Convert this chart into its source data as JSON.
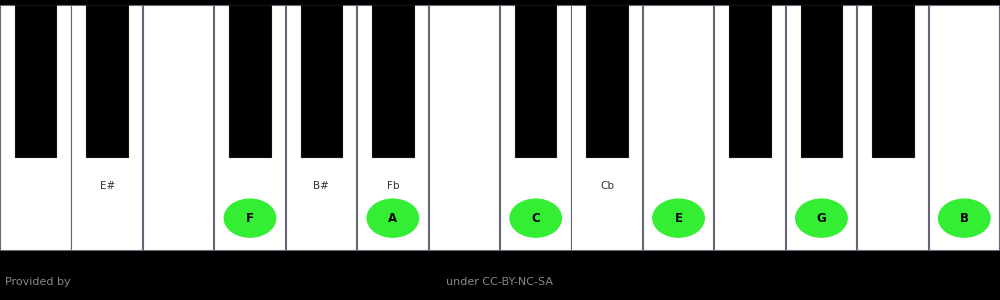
{
  "background_color": "#000000",
  "white_key_color": "#ffffff",
  "black_key_color": "#000000",
  "key_border_color": "#666677",
  "highlight_color": "#33ee33",
  "highlight_text_color": "#000000",
  "footer_text_left": "Provided by",
  "footer_text_right": "under CC-BY-NC-SA",
  "footer_color": "#888888",
  "num_white_keys": 14,
  "black_key_positions": [
    0.5,
    1.5,
    3.5,
    4.5,
    5.5,
    7.5,
    8.5,
    10.5,
    11.5,
    12.5
  ],
  "bk_label_map": {
    "1": "E#",
    "3": "B#",
    "4": "Fb",
    "6": "Cb"
  },
  "highlighted_white": [
    {
      "white_index": 3,
      "label": "F"
    },
    {
      "white_index": 5,
      "label": "A"
    },
    {
      "white_index": 7,
      "label": "C"
    },
    {
      "white_index": 9,
      "label": "E"
    },
    {
      "white_index": 11,
      "label": "G"
    },
    {
      "white_index": 13,
      "label": "B"
    }
  ]
}
